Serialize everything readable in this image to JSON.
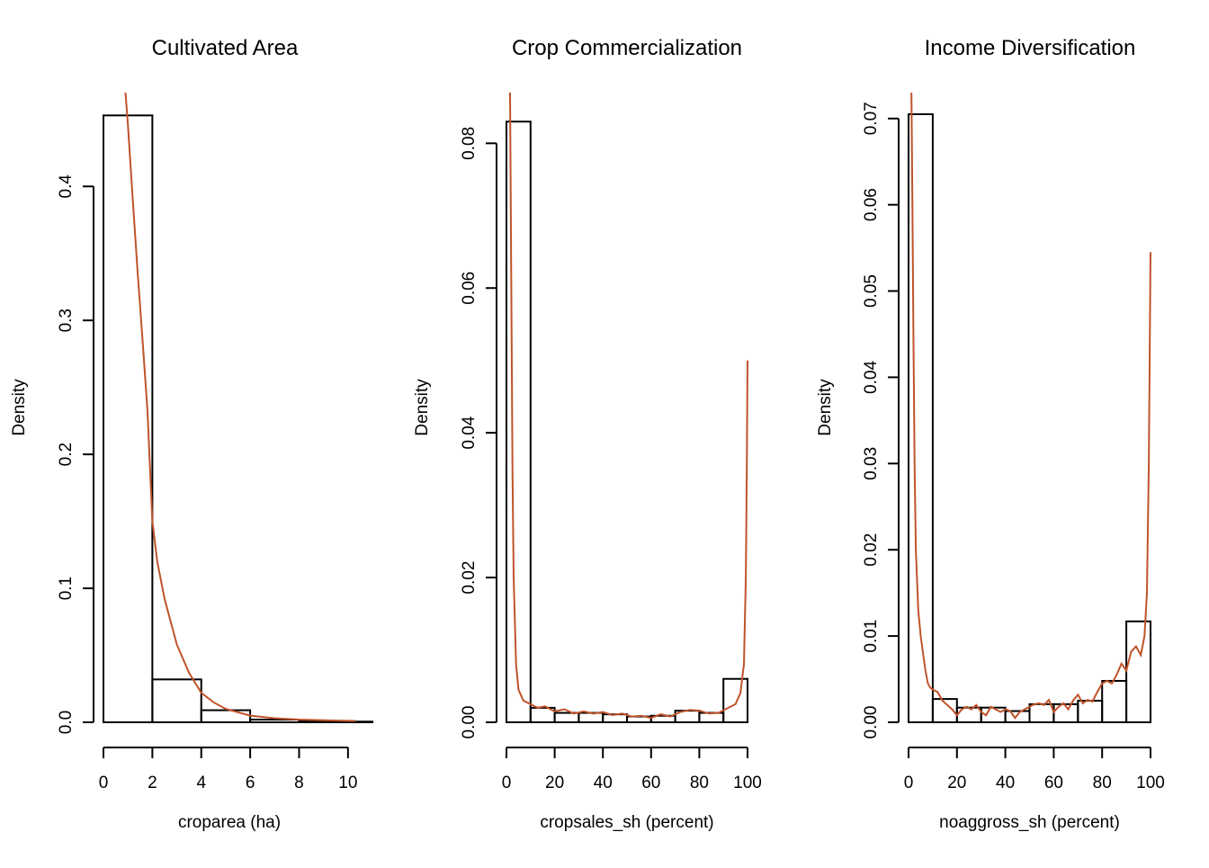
{
  "chart_data": [
    {
      "type": "bar",
      "title": "Cultivated Area",
      "xlabel": "croparea (ha)",
      "ylabel": "Density",
      "xlim": [
        0,
        10.3
      ],
      "ylim": [
        0,
        0.47
      ],
      "xticks": [
        0,
        2,
        4,
        6,
        8,
        10
      ],
      "xtick_labels": [
        "0",
        "2",
        "4",
        "6",
        "8",
        "10"
      ],
      "yticks": [
        0.0,
        0.1,
        0.2,
        0.3,
        0.4
      ],
      "ytick_labels": [
        "0.0",
        "0.1",
        "0.2",
        "0.3",
        "0.4"
      ],
      "bins": [
        {
          "x0": 0,
          "x1": 2,
          "value": 0.453
        },
        {
          "x0": 2,
          "x1": 4,
          "value": 0.032
        },
        {
          "x0": 4,
          "x1": 6,
          "value": 0.009
        },
        {
          "x0": 6,
          "x1": 8,
          "value": 0.002
        },
        {
          "x0": 8,
          "x1": 10,
          "value": 0.001
        },
        {
          "x0": 10,
          "x1": 12,
          "value": 0.0005
        }
      ],
      "density_line": {
        "color": "#c0532a",
        "points": [
          [
            0.9,
            0.47
          ],
          [
            1.0,
            0.446
          ],
          [
            1.2,
            0.39
          ],
          [
            1.4,
            0.335
          ],
          [
            1.6,
            0.285
          ],
          [
            1.8,
            0.233
          ],
          [
            2.0,
            0.15
          ],
          [
            2.2,
            0.12
          ],
          [
            2.5,
            0.092
          ],
          [
            3.0,
            0.058
          ],
          [
            3.5,
            0.037
          ],
          [
            4.0,
            0.022
          ],
          [
            4.5,
            0.015
          ],
          [
            5.0,
            0.01
          ],
          [
            6.0,
            0.005
          ],
          [
            7.0,
            0.003
          ],
          [
            8.0,
            0.002
          ],
          [
            9.0,
            0.0015
          ],
          [
            10.3,
            0.001
          ]
        ]
      }
    },
    {
      "type": "bar",
      "title": "Crop Commercialization",
      "xlabel": "cropsales_sh (percent)",
      "ylabel": "Density",
      "xlim": [
        0,
        100
      ],
      "ylim": [
        0,
        0.087
      ],
      "xticks": [
        0,
        20,
        40,
        60,
        80,
        100
      ],
      "xtick_labels": [
        "0",
        "20",
        "40",
        "60",
        "80",
        "100"
      ],
      "yticks": [
        0.0,
        0.02,
        0.04,
        0.06,
        0.08
      ],
      "ytick_labels": [
        "0.00",
        "0.02",
        "0.04",
        "0.06",
        "0.08"
      ],
      "bins": [
        {
          "x0": 0,
          "x1": 10,
          "value": 0.083
        },
        {
          "x0": 10,
          "x1": 20,
          "value": 0.002
        },
        {
          "x0": 20,
          "x1": 30,
          "value": 0.0013
        },
        {
          "x0": 30,
          "x1": 40,
          "value": 0.0013
        },
        {
          "x0": 40,
          "x1": 50,
          "value": 0.0011
        },
        {
          "x0": 50,
          "x1": 60,
          "value": 0.0008
        },
        {
          "x0": 60,
          "x1": 70,
          "value": 0.0009
        },
        {
          "x0": 70,
          "x1": 80,
          "value": 0.0016
        },
        {
          "x0": 80,
          "x1": 90,
          "value": 0.0013
        },
        {
          "x0": 90,
          "x1": 100,
          "value": 0.006
        }
      ],
      "density_line": {
        "color": "#c0532a",
        "points": [
          [
            1.5,
            0.087
          ],
          [
            2,
            0.06
          ],
          [
            2.5,
            0.035
          ],
          [
            3,
            0.02
          ],
          [
            4,
            0.008
          ],
          [
            5,
            0.0045
          ],
          [
            7,
            0.003
          ],
          [
            10,
            0.0025
          ],
          [
            13,
            0.002
          ],
          [
            16,
            0.0022
          ],
          [
            20,
            0.0015
          ],
          [
            24,
            0.0018
          ],
          [
            28,
            0.0012
          ],
          [
            32,
            0.0015
          ],
          [
            36,
            0.0012
          ],
          [
            40,
            0.0014
          ],
          [
            44,
            0.001
          ],
          [
            48,
            0.0012
          ],
          [
            52,
            0.0008
          ],
          [
            56,
            0.0009
          ],
          [
            60,
            0.0006
          ],
          [
            64,
            0.0011
          ],
          [
            68,
            0.0008
          ],
          [
            72,
            0.0014
          ],
          [
            76,
            0.0017
          ],
          [
            80,
            0.0016
          ],
          [
            84,
            0.0012
          ],
          [
            88,
            0.0013
          ],
          [
            92,
            0.002
          ],
          [
            95,
            0.0025
          ],
          [
            97,
            0.004
          ],
          [
            98.5,
            0.008
          ],
          [
            99.3,
            0.02
          ],
          [
            99.7,
            0.035
          ],
          [
            100,
            0.05
          ]
        ]
      }
    },
    {
      "type": "bar",
      "title": "Income Diversification",
      "xlabel": "noaggross_sh (percent)",
      "ylabel": "Density",
      "xlim": [
        0,
        100
      ],
      "ylim": [
        0,
        0.073
      ],
      "xticks": [
        0,
        20,
        40,
        60,
        80,
        100
      ],
      "xtick_labels": [
        "0",
        "20",
        "40",
        "60",
        "80",
        "100"
      ],
      "yticks": [
        0.0,
        0.01,
        0.02,
        0.03,
        0.04,
        0.05,
        0.06,
        0.07
      ],
      "ytick_labels": [
        "0.00",
        "0.01",
        "0.02",
        "0.03",
        "0.04",
        "0.05",
        "0.06",
        "0.07"
      ],
      "bins": [
        {
          "x0": 0,
          "x1": 10,
          "value": 0.0705
        },
        {
          "x0": 10,
          "x1": 20,
          "value": 0.0027
        },
        {
          "x0": 20,
          "x1": 30,
          "value": 0.0017
        },
        {
          "x0": 30,
          "x1": 40,
          "value": 0.0017
        },
        {
          "x0": 40,
          "x1": 50,
          "value": 0.0013
        },
        {
          "x0": 50,
          "x1": 60,
          "value": 0.0021
        },
        {
          "x0": 60,
          "x1": 70,
          "value": 0.0021
        },
        {
          "x0": 70,
          "x1": 80,
          "value": 0.0025
        },
        {
          "x0": 80,
          "x1": 90,
          "value": 0.0048
        },
        {
          "x0": 90,
          "x1": 100,
          "value": 0.0117
        }
      ],
      "density_line": {
        "color": "#c0532a",
        "points": [
          [
            1.2,
            0.073
          ],
          [
            1.6,
            0.06
          ],
          [
            2,
            0.045
          ],
          [
            2.5,
            0.03
          ],
          [
            3,
            0.02
          ],
          [
            4,
            0.013
          ],
          [
            5,
            0.01
          ],
          [
            6,
            0.008
          ],
          [
            7,
            0.006
          ],
          [
            8,
            0.0045
          ],
          [
            9,
            0.004
          ],
          [
            10,
            0.0038
          ],
          [
            12,
            0.0035
          ],
          [
            14,
            0.0025
          ],
          [
            16,
            0.002
          ],
          [
            18,
            0.0015
          ],
          [
            20,
            0.0008
          ],
          [
            22,
            0.0015
          ],
          [
            24,
            0.0018
          ],
          [
            26,
            0.0015
          ],
          [
            28,
            0.002
          ],
          [
            30,
            0.0012
          ],
          [
            32,
            0.0008
          ],
          [
            34,
            0.0018
          ],
          [
            36,
            0.0015
          ],
          [
            38,
            0.0012
          ],
          [
            40,
            0.0015
          ],
          [
            42,
            0.0013
          ],
          [
            44,
            0.0005
          ],
          [
            46,
            0.0012
          ],
          [
            48,
            0.0015
          ],
          [
            50,
            0.0018
          ],
          [
            52,
            0.0021
          ],
          [
            54,
            0.0022
          ],
          [
            56,
            0.002
          ],
          [
            58,
            0.0026
          ],
          [
            60,
            0.0012
          ],
          [
            62,
            0.0018
          ],
          [
            64,
            0.0022
          ],
          [
            66,
            0.0015
          ],
          [
            68,
            0.0025
          ],
          [
            70,
            0.0032
          ],
          [
            72,
            0.0022
          ],
          [
            74,
            0.0026
          ],
          [
            76,
            0.0024
          ],
          [
            78,
            0.0035
          ],
          [
            80,
            0.0045
          ],
          [
            82,
            0.0048
          ],
          [
            84,
            0.0045
          ],
          [
            86,
            0.0055
          ],
          [
            88,
            0.0068
          ],
          [
            90,
            0.006
          ],
          [
            92,
            0.0082
          ],
          [
            94,
            0.0088
          ],
          [
            96,
            0.0078
          ],
          [
            97.5,
            0.01
          ],
          [
            98.5,
            0.015
          ],
          [
            99.3,
            0.03
          ],
          [
            100,
            0.0545
          ]
        ]
      }
    }
  ]
}
